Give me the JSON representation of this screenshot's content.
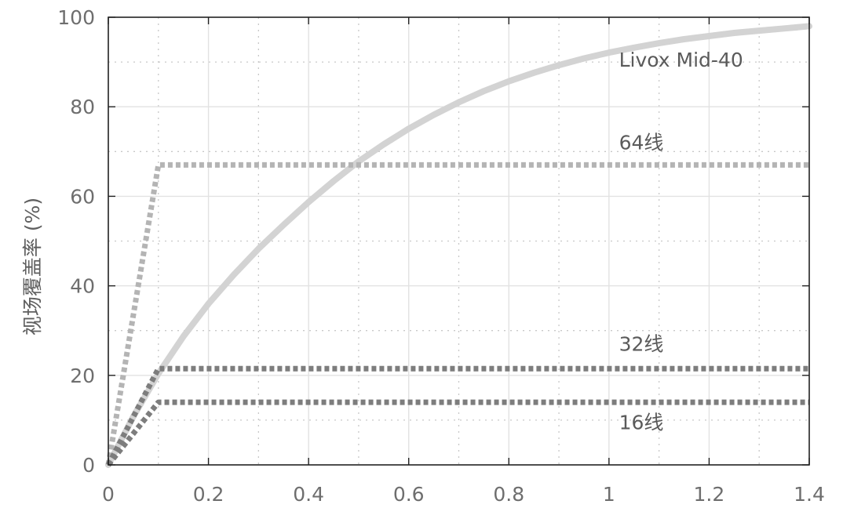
{
  "chart_data": {
    "type": "line",
    "title": "",
    "xlabel": "",
    "ylabel": "视场覆盖率 (%)",
    "xlim": [
      0,
      1.4
    ],
    "ylim": [
      0,
      100
    ],
    "xticks": [
      {
        "value": 0,
        "label": "0"
      },
      {
        "value": 0.2,
        "label": "0.2"
      },
      {
        "value": 0.4,
        "label": "0.4"
      },
      {
        "value": 0.6,
        "label": "0.6"
      },
      {
        "value": 0.8,
        "label": "0.8"
      },
      {
        "value": 1.0,
        "label": "1"
      },
      {
        "value": 1.2,
        "label": "1.2"
      },
      {
        "value": 1.4,
        "label": "1.4"
      }
    ],
    "yticks": [
      {
        "value": 0,
        "label": "0"
      },
      {
        "value": 20,
        "label": "20"
      },
      {
        "value": 40,
        "label": "40"
      },
      {
        "value": 60,
        "label": "60"
      },
      {
        "value": 80,
        "label": "80"
      },
      {
        "value": 100,
        "label": "100"
      }
    ],
    "minor_xgrid": [
      0.1,
      0.3,
      0.5,
      0.7,
      0.9,
      1.1,
      1.3
    ],
    "minor_ygrid": [
      10,
      30,
      50,
      70,
      90
    ],
    "grid": true,
    "series": [
      {
        "name": "Livox Mid-40",
        "style": "solid",
        "color": "#d3d3d3",
        "x": [
          0,
          0.05,
          0.1,
          0.15,
          0.2,
          0.25,
          0.3,
          0.35,
          0.4,
          0.45,
          0.5,
          0.55,
          0.6,
          0.65,
          0.7,
          0.75,
          0.8,
          0.85,
          0.9,
          0.95,
          1.0,
          1.05,
          1.1,
          1.15,
          1.2,
          1.25,
          1.3,
          1.35,
          1.4
        ],
        "y": [
          0,
          10.8,
          20.4,
          28.7,
          36.0,
          42.4,
          48.3,
          53.6,
          58.7,
          63.4,
          67.8,
          71.6,
          75.1,
          78.2,
          81.0,
          83.5,
          85.7,
          87.6,
          89.3,
          90.8,
          92.1,
          93.2,
          94.2,
          95.1,
          95.8,
          96.5,
          97.0,
          97.5,
          98.0
        ]
      },
      {
        "name": "64线",
        "style": "dotted",
        "color": "#b4b4b4",
        "x": [
          0,
          0.1,
          1.4
        ],
        "y": [
          0,
          67,
          67
        ]
      },
      {
        "name": "32线",
        "style": "dotted",
        "color": "#7d7d7d",
        "x": [
          0,
          0.1,
          1.4
        ],
        "y": [
          0,
          21.5,
          21.5
        ]
      },
      {
        "name": "16线",
        "style": "dotted",
        "color": "#7d7d7d",
        "x": [
          0,
          0.1,
          1.4
        ],
        "y": [
          0,
          14,
          14
        ]
      }
    ],
    "annotations": [
      {
        "text": "Livox Mid-40",
        "series": "Livox Mid-40",
        "x": 1.02,
        "y": 89
      },
      {
        "text": "64线",
        "series": "64线",
        "x": 1.02,
        "y": 70.5
      },
      {
        "text": "32线",
        "series": "32线",
        "x": 1.02,
        "y": 25.5
      },
      {
        "text": "16线",
        "series": "16线",
        "x": 1.02,
        "y": 8
      }
    ]
  }
}
